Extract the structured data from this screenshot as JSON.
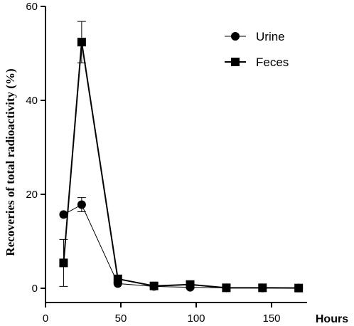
{
  "chart_data": {
    "type": "line",
    "title": "",
    "xlabel": "Hours",
    "ylabel": "Recoveries of total radioactivity (%)",
    "xlim": [
      0,
      175
    ],
    "ylim": [
      0,
      60
    ],
    "xticks": [
      0,
      50,
      100,
      150
    ],
    "yticks": [
      0,
      20,
      40,
      60
    ],
    "xtick_labels": [
      "0",
      "50",
      "100",
      "150"
    ],
    "ytick_labels": [
      "0",
      "20",
      "40",
      "60"
    ],
    "grid": false,
    "legend_position": "top-right",
    "series": [
      {
        "name": "Urine",
        "marker": "circle",
        "x": [
          12,
          24,
          48,
          72,
          96,
          120,
          144,
          168
        ],
        "y": [
          15.7,
          17.8,
          1.0,
          0.4,
          0.2,
          0.1,
          0.05,
          0.05
        ],
        "error": [
          null,
          1.5,
          null,
          null,
          null,
          null,
          null,
          null
        ],
        "color": "#000000",
        "line_width": 1
      },
      {
        "name": "Feces",
        "marker": "square",
        "x": [
          12,
          24,
          48,
          72,
          96,
          120,
          144,
          168
        ],
        "y": [
          5.4,
          52.4,
          2.0,
          0.5,
          0.8,
          0.1,
          0.1,
          0.05
        ],
        "error": [
          5.0,
          4.4,
          0.8,
          null,
          null,
          null,
          null,
          null
        ],
        "color": "#000000",
        "line_width": 2
      }
    ]
  }
}
